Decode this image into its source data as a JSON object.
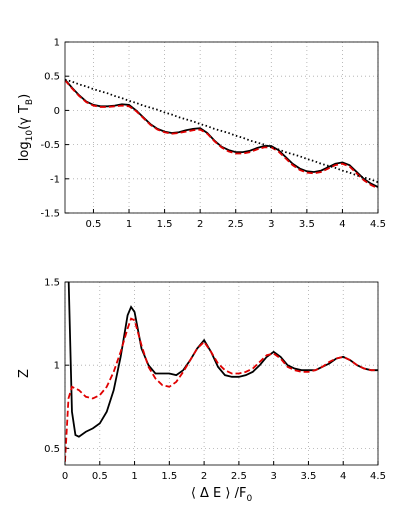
{
  "chart_data": [
    {
      "type": "line",
      "ylabel": [
        "log",
        "10",
        "(γ T",
        "B",
        ")"
      ],
      "x": [
        0.1,
        0.2,
        0.3,
        0.4,
        0.5,
        0.6,
        0.7,
        0.8,
        0.9,
        1.0,
        1.1,
        1.2,
        1.3,
        1.4,
        1.5,
        1.6,
        1.7,
        1.8,
        1.9,
        2.0,
        2.1,
        2.2,
        2.3,
        2.4,
        2.5,
        2.6,
        2.7,
        2.8,
        2.9,
        3.0,
        3.1,
        3.2,
        3.3,
        3.4,
        3.5,
        3.6,
        3.7,
        3.8,
        3.9,
        4.0,
        4.1,
        4.2,
        4.3,
        4.4,
        4.5
      ],
      "series": [
        {
          "color": "#000000",
          "dash": "solid",
          "values": [
            0.45,
            0.33,
            0.22,
            0.13,
            0.08,
            0.06,
            0.06,
            0.07,
            0.09,
            0.08,
            0.0,
            -0.1,
            -0.2,
            -0.27,
            -0.31,
            -0.33,
            -0.32,
            -0.29,
            -0.27,
            -0.26,
            -0.33,
            -0.44,
            -0.53,
            -0.58,
            -0.61,
            -0.61,
            -0.59,
            -0.55,
            -0.52,
            -0.52,
            -0.58,
            -0.68,
            -0.78,
            -0.85,
            -0.89,
            -0.9,
            -0.88,
            -0.83,
            -0.78,
            -0.76,
            -0.8,
            -0.9,
            -1.0,
            -1.07,
            -1.12
          ]
        },
        {
          "color": "#e00000",
          "dash": "dashed",
          "values": [
            0.44,
            0.32,
            0.21,
            0.12,
            0.07,
            0.05,
            0.05,
            0.06,
            0.07,
            0.06,
            -0.01,
            -0.11,
            -0.21,
            -0.28,
            -0.32,
            -0.34,
            -0.33,
            -0.31,
            -0.29,
            -0.28,
            -0.34,
            -0.45,
            -0.54,
            -0.6,
            -0.63,
            -0.63,
            -0.61,
            -0.57,
            -0.54,
            -0.54,
            -0.6,
            -0.7,
            -0.8,
            -0.87,
            -0.91,
            -0.92,
            -0.9,
            -0.85,
            -0.8,
            -0.78,
            -0.82,
            -0.92,
            -1.02,
            -1.09,
            -1.14
          ]
        },
        {
          "color": "#000000",
          "dash": "dotted",
          "values": [
            0.45,
            0.42,
            0.38,
            0.35,
            0.31,
            0.28,
            0.25,
            0.21,
            0.18,
            0.14,
            0.11,
            0.07,
            0.04,
            0.01,
            -0.03,
            -0.06,
            -0.1,
            -0.13,
            -0.16,
            -0.2,
            -0.23,
            -0.27,
            -0.3,
            -0.33,
            -0.37,
            -0.4,
            -0.44,
            -0.47,
            -0.5,
            -0.54,
            -0.57,
            -0.61,
            -0.64,
            -0.67,
            -0.71,
            -0.74,
            -0.78,
            -0.81,
            -0.84,
            -0.88,
            -0.91,
            -0.95,
            -0.98,
            -1.01,
            -1.05
          ]
        }
      ],
      "xlim": [
        0.1,
        4.5
      ],
      "xticks": [
        0.5,
        1,
        1.5,
        2,
        2.5,
        3,
        3.5,
        4,
        4.5
      ],
      "ylim": [
        -1.5,
        1
      ],
      "yticks": [
        -1.5,
        -1,
        -0.5,
        0,
        0.5,
        1
      ],
      "grid": true
    },
    {
      "type": "line",
      "xlabel": [
        "⟨ Δ E ⟩ /F",
        "0"
      ],
      "ylabel": [
        "Z"
      ],
      "x": [
        0,
        0.05,
        0.1,
        0.15,
        0.2,
        0.3,
        0.4,
        0.5,
        0.6,
        0.7,
        0.8,
        0.9,
        0.95,
        1.0,
        1.1,
        1.2,
        1.3,
        1.4,
        1.5,
        1.6,
        1.7,
        1.8,
        1.9,
        2.0,
        2.1,
        2.2,
        2.3,
        2.4,
        2.5,
        2.6,
        2.7,
        2.8,
        2.9,
        3.0,
        3.1,
        3.2,
        3.3,
        3.4,
        3.5,
        3.6,
        3.7,
        3.8,
        3.9,
        4.0,
        4.1,
        4.2,
        4.3,
        4.4,
        4.5
      ],
      "series": [
        {
          "color": "#000000",
          "dash": "solid",
          "values": [
            null,
            1.55,
            0.72,
            0.58,
            0.57,
            0.6,
            0.62,
            0.65,
            0.72,
            0.85,
            1.05,
            1.3,
            1.35,
            1.32,
            1.1,
            1.0,
            0.95,
            0.95,
            0.95,
            0.94,
            0.97,
            1.03,
            1.1,
            1.15,
            1.08,
            0.99,
            0.94,
            0.93,
            0.93,
            0.94,
            0.96,
            1.0,
            1.05,
            1.08,
            1.05,
            1.0,
            0.98,
            0.97,
            0.97,
            0.97,
            0.99,
            1.01,
            1.04,
            1.05,
            1.03,
            1.0,
            0.98,
            0.97,
            0.97
          ]
        },
        {
          "color": "#e00000",
          "dash": "dashed",
          "values": [
            0.42,
            0.8,
            0.87,
            0.86,
            0.85,
            0.81,
            0.8,
            0.82,
            0.87,
            0.96,
            1.08,
            1.22,
            1.28,
            1.27,
            1.12,
            0.99,
            0.92,
            0.88,
            0.87,
            0.9,
            0.96,
            1.03,
            1.1,
            1.14,
            1.08,
            1.01,
            0.97,
            0.95,
            0.95,
            0.96,
            0.98,
            1.02,
            1.06,
            1.07,
            1.04,
            0.99,
            0.97,
            0.96,
            0.96,
            0.97,
            0.99,
            1.02,
            1.04,
            1.05,
            1.03,
            1.0,
            0.98,
            0.97,
            0.97
          ]
        }
      ],
      "xlim": [
        0,
        4.5
      ],
      "xticks": [
        0,
        0.5,
        1,
        1.5,
        2,
        2.5,
        3,
        3.5,
        4,
        4.5
      ],
      "ylim": [
        0.4,
        1.5
      ],
      "yticks": [
        0.5,
        1,
        1.5
      ],
      "grid": true
    }
  ]
}
